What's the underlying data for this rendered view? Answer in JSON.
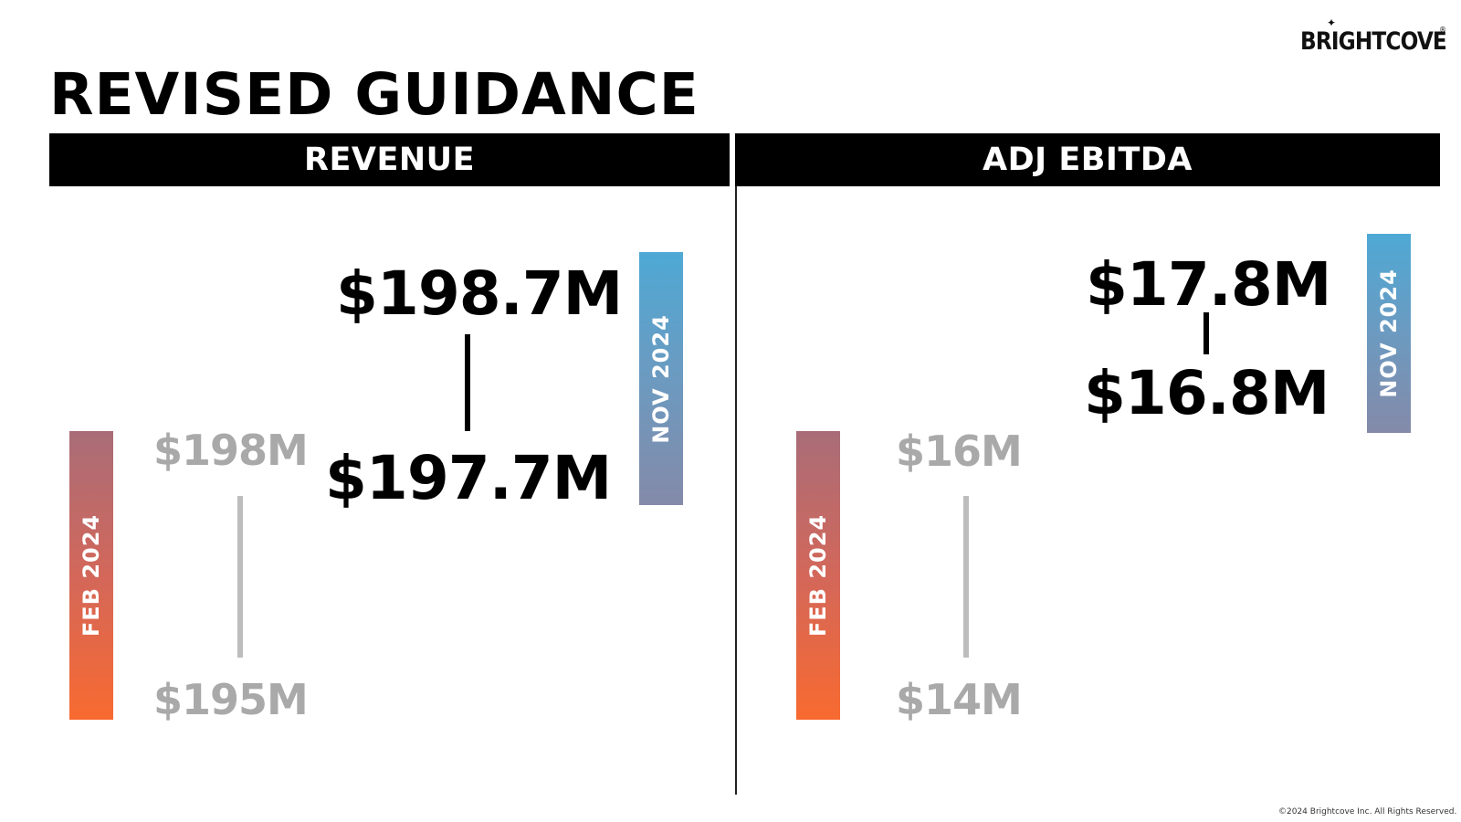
{
  "logo": {
    "text": "BRIGHTCOVE",
    "spark": "✦",
    "reg": "®"
  },
  "title": "REVISED GUIDANCE",
  "revenue": {
    "header": "REVENUE",
    "feb_label": "FEB 2024",
    "feb_high": "$198M",
    "feb_low": "$195M",
    "nov_label": "NOV 2024",
    "nov_high": "$198.7M",
    "nov_low": "$197.7M"
  },
  "ebitda": {
    "header": "ADJ EBITDA",
    "feb_label": "FEB 2024",
    "feb_high": "$16M",
    "feb_low": "$14M",
    "nov_label": "NOV 2024",
    "nov_high": "$17.8M",
    "nov_low": "$16.8M"
  },
  "colors": {
    "feb_gradient": [
      "#a96d78",
      "#f86a30"
    ],
    "nov_gradient": [
      "#4ea9d5",
      "#848aa9"
    ],
    "prior_value": "#a9a9a9",
    "current_value": "#000000"
  },
  "footer": "©2024 Brightcove Inc. All Rights Reserved."
}
